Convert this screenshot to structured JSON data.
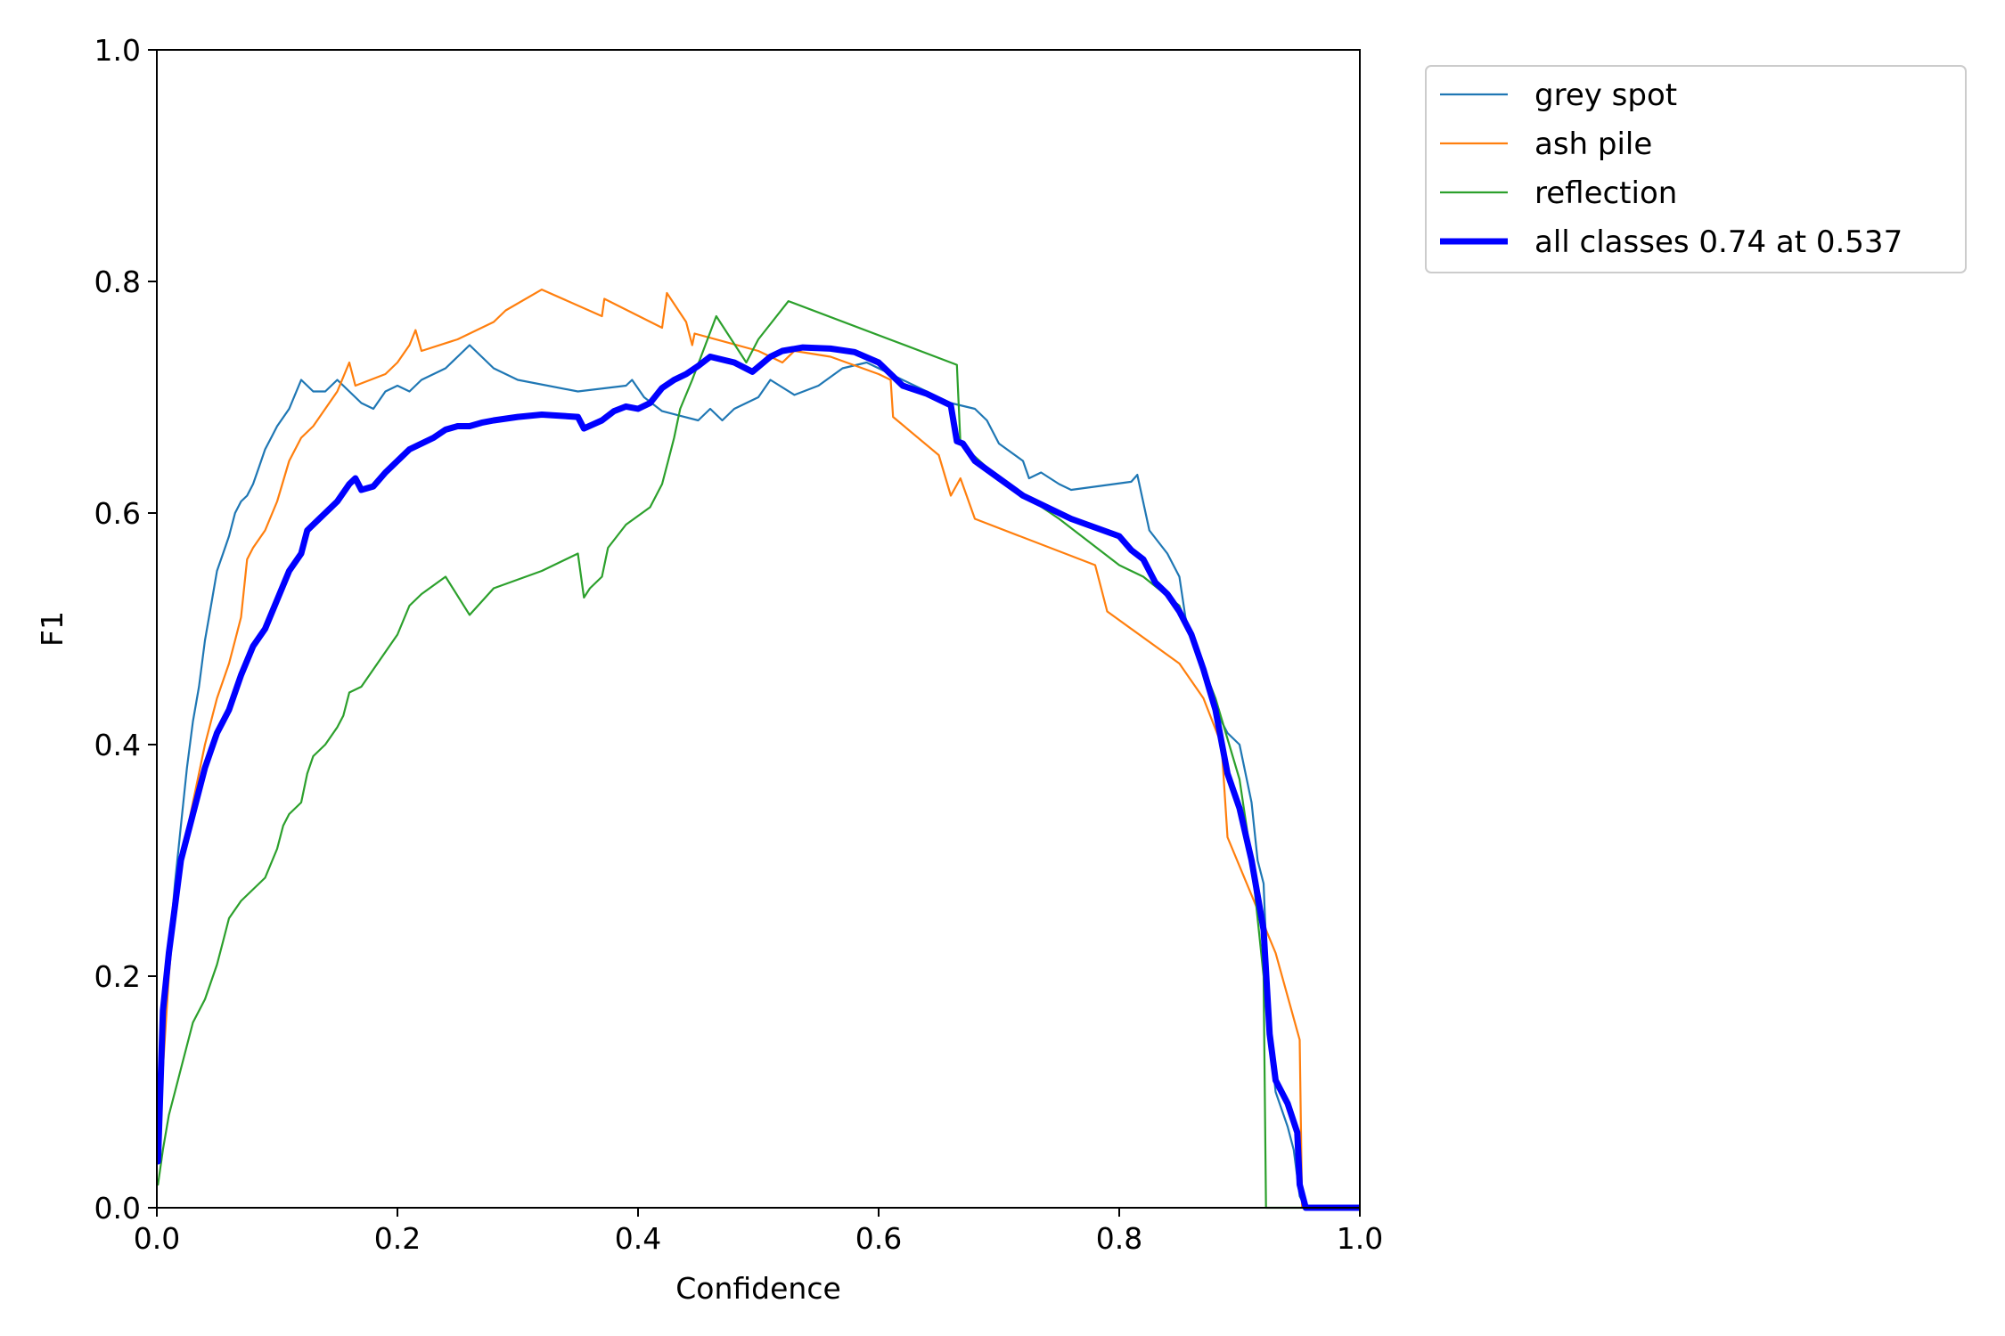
{
  "chart_data": {
    "type": "line",
    "title": "",
    "xlabel": "Confidence",
    "ylabel": "F1",
    "xlim": [
      0,
      1
    ],
    "ylim": [
      0,
      1
    ],
    "x_ticks": [
      "0.0",
      "0.2",
      "0.4",
      "0.6",
      "0.8",
      "1.0"
    ],
    "y_ticks": [
      "0.0",
      "0.2",
      "0.4",
      "0.6",
      "0.8",
      "1.0"
    ],
    "grid": false,
    "legend_position": "outside-top-right",
    "series": [
      {
        "name": "grey spot",
        "color": "#1f77b4",
        "points": [
          [
            0.001,
            0.05
          ],
          [
            0.005,
            0.15
          ],
          [
            0.01,
            0.22
          ],
          [
            0.015,
            0.28
          ],
          [
            0.02,
            0.33
          ],
          [
            0.025,
            0.38
          ],
          [
            0.03,
            0.42
          ],
          [
            0.035,
            0.45
          ],
          [
            0.04,
            0.49
          ],
          [
            0.045,
            0.52
          ],
          [
            0.05,
            0.55
          ],
          [
            0.055,
            0.565
          ],
          [
            0.06,
            0.58
          ],
          [
            0.065,
            0.6
          ],
          [
            0.07,
            0.61
          ],
          [
            0.075,
            0.615
          ],
          [
            0.08,
            0.625
          ],
          [
            0.085,
            0.64
          ],
          [
            0.09,
            0.655
          ],
          [
            0.095,
            0.665
          ],
          [
            0.1,
            0.675
          ],
          [
            0.11,
            0.69
          ],
          [
            0.12,
            0.715
          ],
          [
            0.13,
            0.705
          ],
          [
            0.14,
            0.705
          ],
          [
            0.15,
            0.715
          ],
          [
            0.16,
            0.705
          ],
          [
            0.17,
            0.695
          ],
          [
            0.18,
            0.69
          ],
          [
            0.19,
            0.705
          ],
          [
            0.2,
            0.71
          ],
          [
            0.21,
            0.705
          ],
          [
            0.22,
            0.715
          ],
          [
            0.23,
            0.72
          ],
          [
            0.24,
            0.725
          ],
          [
            0.25,
            0.735
          ],
          [
            0.26,
            0.745
          ],
          [
            0.27,
            0.735
          ],
          [
            0.28,
            0.725
          ],
          [
            0.3,
            0.715
          ],
          [
            0.35,
            0.705
          ],
          [
            0.39,
            0.71
          ],
          [
            0.395,
            0.715
          ],
          [
            0.405,
            0.7
          ],
          [
            0.42,
            0.688
          ],
          [
            0.45,
            0.68
          ],
          [
            0.46,
            0.69
          ],
          [
            0.47,
            0.68
          ],
          [
            0.48,
            0.69
          ],
          [
            0.5,
            0.7
          ],
          [
            0.51,
            0.715
          ],
          [
            0.53,
            0.702
          ],
          [
            0.55,
            0.71
          ],
          [
            0.57,
            0.725
          ],
          [
            0.59,
            0.73
          ],
          [
            0.61,
            0.72
          ],
          [
            0.64,
            0.705
          ],
          [
            0.66,
            0.695
          ],
          [
            0.68,
            0.69
          ],
          [
            0.69,
            0.68
          ],
          [
            0.7,
            0.66
          ],
          [
            0.72,
            0.645
          ],
          [
            0.725,
            0.63
          ],
          [
            0.735,
            0.635
          ],
          [
            0.75,
            0.625
          ],
          [
            0.76,
            0.62
          ],
          [
            0.81,
            0.627
          ],
          [
            0.815,
            0.633
          ],
          [
            0.825,
            0.585
          ],
          [
            0.84,
            0.565
          ],
          [
            0.85,
            0.545
          ],
          [
            0.855,
            0.51
          ],
          [
            0.86,
            0.49
          ],
          [
            0.87,
            0.465
          ],
          [
            0.88,
            0.43
          ],
          [
            0.89,
            0.41
          ],
          [
            0.9,
            0.4
          ],
          [
            0.91,
            0.35
          ],
          [
            0.915,
            0.3
          ],
          [
            0.92,
            0.28
          ],
          [
            0.925,
            0.15
          ],
          [
            0.93,
            0.1
          ],
          [
            0.94,
            0.07
          ],
          [
            0.945,
            0.05
          ],
          [
            0.95,
            0.01
          ],
          [
            0.955,
            0.0
          ],
          [
            1.0,
            0.0
          ]
        ]
      },
      {
        "name": "ash pile",
        "color": "#ff7f0e",
        "points": [
          [
            0.001,
            0.04
          ],
          [
            0.005,
            0.12
          ],
          [
            0.01,
            0.2
          ],
          [
            0.015,
            0.26
          ],
          [
            0.02,
            0.3
          ],
          [
            0.03,
            0.35
          ],
          [
            0.04,
            0.4
          ],
          [
            0.05,
            0.44
          ],
          [
            0.06,
            0.47
          ],
          [
            0.065,
            0.49
          ],
          [
            0.07,
            0.51
          ],
          [
            0.075,
            0.56
          ],
          [
            0.08,
            0.57
          ],
          [
            0.09,
            0.585
          ],
          [
            0.1,
            0.61
          ],
          [
            0.11,
            0.645
          ],
          [
            0.12,
            0.665
          ],
          [
            0.13,
            0.675
          ],
          [
            0.14,
            0.69
          ],
          [
            0.15,
            0.705
          ],
          [
            0.16,
            0.73
          ],
          [
            0.165,
            0.71
          ],
          [
            0.19,
            0.72
          ],
          [
            0.2,
            0.73
          ],
          [
            0.21,
            0.745
          ],
          [
            0.215,
            0.758
          ],
          [
            0.22,
            0.74
          ],
          [
            0.25,
            0.75
          ],
          [
            0.28,
            0.765
          ],
          [
            0.29,
            0.775
          ],
          [
            0.32,
            0.793
          ],
          [
            0.37,
            0.77
          ],
          [
            0.372,
            0.785
          ],
          [
            0.42,
            0.76
          ],
          [
            0.424,
            0.79
          ],
          [
            0.44,
            0.765
          ],
          [
            0.445,
            0.745
          ],
          [
            0.447,
            0.755
          ],
          [
            0.5,
            0.74
          ],
          [
            0.52,
            0.73
          ],
          [
            0.53,
            0.74
          ],
          [
            0.56,
            0.735
          ],
          [
            0.6,
            0.72
          ],
          [
            0.61,
            0.715
          ],
          [
            0.612,
            0.683
          ],
          [
            0.65,
            0.65
          ],
          [
            0.66,
            0.615
          ],
          [
            0.668,
            0.63
          ],
          [
            0.68,
            0.595
          ],
          [
            0.78,
            0.555
          ],
          [
            0.79,
            0.515
          ],
          [
            0.85,
            0.47
          ],
          [
            0.87,
            0.44
          ],
          [
            0.885,
            0.4
          ],
          [
            0.89,
            0.32
          ],
          [
            0.91,
            0.27
          ],
          [
            0.93,
            0.22
          ],
          [
            0.95,
            0.145
          ],
          [
            0.952,
            0.0
          ],
          [
            1.0,
            0.0
          ]
        ]
      },
      {
        "name": "reflection",
        "color": "#2ca02c",
        "points": [
          [
            0.001,
            0.02
          ],
          [
            0.005,
            0.05
          ],
          [
            0.01,
            0.08
          ],
          [
            0.015,
            0.1
          ],
          [
            0.02,
            0.12
          ],
          [
            0.03,
            0.16
          ],
          [
            0.04,
            0.18
          ],
          [
            0.05,
            0.21
          ],
          [
            0.055,
            0.23
          ],
          [
            0.06,
            0.25
          ],
          [
            0.07,
            0.265
          ],
          [
            0.08,
            0.275
          ],
          [
            0.09,
            0.285
          ],
          [
            0.1,
            0.31
          ],
          [
            0.105,
            0.33
          ],
          [
            0.11,
            0.34
          ],
          [
            0.12,
            0.35
          ],
          [
            0.125,
            0.375
          ],
          [
            0.13,
            0.39
          ],
          [
            0.14,
            0.4
          ],
          [
            0.15,
            0.415
          ],
          [
            0.155,
            0.425
          ],
          [
            0.16,
            0.445
          ],
          [
            0.17,
            0.45
          ],
          [
            0.18,
            0.465
          ],
          [
            0.19,
            0.48
          ],
          [
            0.2,
            0.495
          ],
          [
            0.21,
            0.52
          ],
          [
            0.22,
            0.53
          ],
          [
            0.24,
            0.545
          ],
          [
            0.26,
            0.512
          ],
          [
            0.28,
            0.535
          ],
          [
            0.32,
            0.55
          ],
          [
            0.35,
            0.565
          ],
          [
            0.355,
            0.527
          ],
          [
            0.36,
            0.535
          ],
          [
            0.37,
            0.545
          ],
          [
            0.375,
            0.57
          ],
          [
            0.39,
            0.59
          ],
          [
            0.41,
            0.605
          ],
          [
            0.42,
            0.625
          ],
          [
            0.425,
            0.645
          ],
          [
            0.43,
            0.665
          ],
          [
            0.435,
            0.69
          ],
          [
            0.445,
            0.715
          ],
          [
            0.465,
            0.77
          ],
          [
            0.49,
            0.73
          ],
          [
            0.5,
            0.75
          ],
          [
            0.525,
            0.783
          ],
          [
            0.665,
            0.728
          ],
          [
            0.668,
            0.66
          ],
          [
            0.7,
            0.63
          ],
          [
            0.75,
            0.595
          ],
          [
            0.8,
            0.555
          ],
          [
            0.82,
            0.545
          ],
          [
            0.85,
            0.52
          ],
          [
            0.88,
            0.44
          ],
          [
            0.9,
            0.37
          ],
          [
            0.91,
            0.3
          ],
          [
            0.92,
            0.2
          ],
          [
            0.922,
            0.0
          ],
          [
            1.0,
            0.0
          ]
        ]
      },
      {
        "name": "all classes 0.74 at 0.537",
        "color": "#0000ff",
        "points": [
          [
            0.001,
            0.04
          ],
          [
            0.005,
            0.17
          ],
          [
            0.01,
            0.22
          ],
          [
            0.015,
            0.26
          ],
          [
            0.02,
            0.3
          ],
          [
            0.03,
            0.34
          ],
          [
            0.04,
            0.38
          ],
          [
            0.05,
            0.41
          ],
          [
            0.06,
            0.43
          ],
          [
            0.07,
            0.46
          ],
          [
            0.08,
            0.485
          ],
          [
            0.09,
            0.5
          ],
          [
            0.1,
            0.525
          ],
          [
            0.11,
            0.55
          ],
          [
            0.12,
            0.565
          ],
          [
            0.125,
            0.585
          ],
          [
            0.13,
            0.59
          ],
          [
            0.14,
            0.6
          ],
          [
            0.15,
            0.61
          ],
          [
            0.16,
            0.625
          ],
          [
            0.165,
            0.63
          ],
          [
            0.17,
            0.62
          ],
          [
            0.18,
            0.623
          ],
          [
            0.19,
            0.635
          ],
          [
            0.2,
            0.645
          ],
          [
            0.21,
            0.655
          ],
          [
            0.22,
            0.66
          ],
          [
            0.23,
            0.665
          ],
          [
            0.24,
            0.672
          ],
          [
            0.25,
            0.675
          ],
          [
            0.26,
            0.675
          ],
          [
            0.27,
            0.678
          ],
          [
            0.28,
            0.68
          ],
          [
            0.3,
            0.683
          ],
          [
            0.32,
            0.685
          ],
          [
            0.35,
            0.683
          ],
          [
            0.355,
            0.673
          ],
          [
            0.37,
            0.68
          ],
          [
            0.38,
            0.688
          ],
          [
            0.39,
            0.692
          ],
          [
            0.4,
            0.69
          ],
          [
            0.41,
            0.695
          ],
          [
            0.42,
            0.708
          ],
          [
            0.43,
            0.715
          ],
          [
            0.44,
            0.72
          ],
          [
            0.45,
            0.727
          ],
          [
            0.46,
            0.735
          ],
          [
            0.48,
            0.73
          ],
          [
            0.495,
            0.722
          ],
          [
            0.51,
            0.735
          ],
          [
            0.52,
            0.74
          ],
          [
            0.537,
            0.743
          ],
          [
            0.56,
            0.742
          ],
          [
            0.58,
            0.739
          ],
          [
            0.6,
            0.73
          ],
          [
            0.61,
            0.72
          ],
          [
            0.62,
            0.71
          ],
          [
            0.64,
            0.703
          ],
          [
            0.66,
            0.693
          ],
          [
            0.665,
            0.662
          ],
          [
            0.67,
            0.66
          ],
          [
            0.68,
            0.645
          ],
          [
            0.7,
            0.63
          ],
          [
            0.72,
            0.615
          ],
          [
            0.74,
            0.605
          ],
          [
            0.76,
            0.595
          ],
          [
            0.8,
            0.58
          ],
          [
            0.81,
            0.568
          ],
          [
            0.82,
            0.56
          ],
          [
            0.83,
            0.54
          ],
          [
            0.84,
            0.53
          ],
          [
            0.85,
            0.515
          ],
          [
            0.86,
            0.495
          ],
          [
            0.87,
            0.465
          ],
          [
            0.88,
            0.43
          ],
          [
            0.89,
            0.375
          ],
          [
            0.9,
            0.345
          ],
          [
            0.91,
            0.3
          ],
          [
            0.92,
            0.24
          ],
          [
            0.925,
            0.15
          ],
          [
            0.93,
            0.11
          ],
          [
            0.94,
            0.09
          ],
          [
            0.948,
            0.065
          ],
          [
            0.95,
            0.02
          ],
          [
            0.955,
            0.0
          ],
          [
            1.0,
            0.0
          ]
        ]
      }
    ]
  }
}
